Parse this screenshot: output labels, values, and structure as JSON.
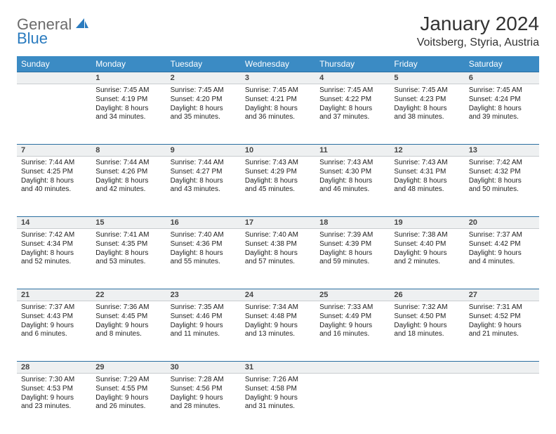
{
  "logo": {
    "text1": "General",
    "text2": "Blue"
  },
  "title": "January 2024",
  "location": "Voitsberg, Styria, Austria",
  "colors": {
    "header_bg": "#3b8bc4",
    "header_text": "#ffffff",
    "day_bg": "#eef0f1",
    "border_top": "#2a6ea0",
    "logo_gray": "#6b6b6b",
    "logo_blue": "#2a7bbf"
  },
  "weekdays": [
    "Sunday",
    "Monday",
    "Tuesday",
    "Wednesday",
    "Thursday",
    "Friday",
    "Saturday"
  ],
  "weeks": [
    {
      "nums": [
        "",
        "1",
        "2",
        "3",
        "4",
        "5",
        "6"
      ],
      "cells": [
        null,
        {
          "sr": "Sunrise: 7:45 AM",
          "ss": "Sunset: 4:19 PM",
          "d1": "Daylight: 8 hours",
          "d2": "and 34 minutes."
        },
        {
          "sr": "Sunrise: 7:45 AM",
          "ss": "Sunset: 4:20 PM",
          "d1": "Daylight: 8 hours",
          "d2": "and 35 minutes."
        },
        {
          "sr": "Sunrise: 7:45 AM",
          "ss": "Sunset: 4:21 PM",
          "d1": "Daylight: 8 hours",
          "d2": "and 36 minutes."
        },
        {
          "sr": "Sunrise: 7:45 AM",
          "ss": "Sunset: 4:22 PM",
          "d1": "Daylight: 8 hours",
          "d2": "and 37 minutes."
        },
        {
          "sr": "Sunrise: 7:45 AM",
          "ss": "Sunset: 4:23 PM",
          "d1": "Daylight: 8 hours",
          "d2": "and 38 minutes."
        },
        {
          "sr": "Sunrise: 7:45 AM",
          "ss": "Sunset: 4:24 PM",
          "d1": "Daylight: 8 hours",
          "d2": "and 39 minutes."
        }
      ]
    },
    {
      "nums": [
        "7",
        "8",
        "9",
        "10",
        "11",
        "12",
        "13"
      ],
      "cells": [
        {
          "sr": "Sunrise: 7:44 AM",
          "ss": "Sunset: 4:25 PM",
          "d1": "Daylight: 8 hours",
          "d2": "and 40 minutes."
        },
        {
          "sr": "Sunrise: 7:44 AM",
          "ss": "Sunset: 4:26 PM",
          "d1": "Daylight: 8 hours",
          "d2": "and 42 minutes."
        },
        {
          "sr": "Sunrise: 7:44 AM",
          "ss": "Sunset: 4:27 PM",
          "d1": "Daylight: 8 hours",
          "d2": "and 43 minutes."
        },
        {
          "sr": "Sunrise: 7:43 AM",
          "ss": "Sunset: 4:29 PM",
          "d1": "Daylight: 8 hours",
          "d2": "and 45 minutes."
        },
        {
          "sr": "Sunrise: 7:43 AM",
          "ss": "Sunset: 4:30 PM",
          "d1": "Daylight: 8 hours",
          "d2": "and 46 minutes."
        },
        {
          "sr": "Sunrise: 7:43 AM",
          "ss": "Sunset: 4:31 PM",
          "d1": "Daylight: 8 hours",
          "d2": "and 48 minutes."
        },
        {
          "sr": "Sunrise: 7:42 AM",
          "ss": "Sunset: 4:32 PM",
          "d1": "Daylight: 8 hours",
          "d2": "and 50 minutes."
        }
      ]
    },
    {
      "nums": [
        "14",
        "15",
        "16",
        "17",
        "18",
        "19",
        "20"
      ],
      "cells": [
        {
          "sr": "Sunrise: 7:42 AM",
          "ss": "Sunset: 4:34 PM",
          "d1": "Daylight: 8 hours",
          "d2": "and 52 minutes."
        },
        {
          "sr": "Sunrise: 7:41 AM",
          "ss": "Sunset: 4:35 PM",
          "d1": "Daylight: 8 hours",
          "d2": "and 53 minutes."
        },
        {
          "sr": "Sunrise: 7:40 AM",
          "ss": "Sunset: 4:36 PM",
          "d1": "Daylight: 8 hours",
          "d2": "and 55 minutes."
        },
        {
          "sr": "Sunrise: 7:40 AM",
          "ss": "Sunset: 4:38 PM",
          "d1": "Daylight: 8 hours",
          "d2": "and 57 minutes."
        },
        {
          "sr": "Sunrise: 7:39 AM",
          "ss": "Sunset: 4:39 PM",
          "d1": "Daylight: 8 hours",
          "d2": "and 59 minutes."
        },
        {
          "sr": "Sunrise: 7:38 AM",
          "ss": "Sunset: 4:40 PM",
          "d1": "Daylight: 9 hours",
          "d2": "and 2 minutes."
        },
        {
          "sr": "Sunrise: 7:37 AM",
          "ss": "Sunset: 4:42 PM",
          "d1": "Daylight: 9 hours",
          "d2": "and 4 minutes."
        }
      ]
    },
    {
      "nums": [
        "21",
        "22",
        "23",
        "24",
        "25",
        "26",
        "27"
      ],
      "cells": [
        {
          "sr": "Sunrise: 7:37 AM",
          "ss": "Sunset: 4:43 PM",
          "d1": "Daylight: 9 hours",
          "d2": "and 6 minutes."
        },
        {
          "sr": "Sunrise: 7:36 AM",
          "ss": "Sunset: 4:45 PM",
          "d1": "Daylight: 9 hours",
          "d2": "and 8 minutes."
        },
        {
          "sr": "Sunrise: 7:35 AM",
          "ss": "Sunset: 4:46 PM",
          "d1": "Daylight: 9 hours",
          "d2": "and 11 minutes."
        },
        {
          "sr": "Sunrise: 7:34 AM",
          "ss": "Sunset: 4:48 PM",
          "d1": "Daylight: 9 hours",
          "d2": "and 13 minutes."
        },
        {
          "sr": "Sunrise: 7:33 AM",
          "ss": "Sunset: 4:49 PM",
          "d1": "Daylight: 9 hours",
          "d2": "and 16 minutes."
        },
        {
          "sr": "Sunrise: 7:32 AM",
          "ss": "Sunset: 4:50 PM",
          "d1": "Daylight: 9 hours",
          "d2": "and 18 minutes."
        },
        {
          "sr": "Sunrise: 7:31 AM",
          "ss": "Sunset: 4:52 PM",
          "d1": "Daylight: 9 hours",
          "d2": "and 21 minutes."
        }
      ]
    },
    {
      "nums": [
        "28",
        "29",
        "30",
        "31",
        "",
        "",
        ""
      ],
      "cells": [
        {
          "sr": "Sunrise: 7:30 AM",
          "ss": "Sunset: 4:53 PM",
          "d1": "Daylight: 9 hours",
          "d2": "and 23 minutes."
        },
        {
          "sr": "Sunrise: 7:29 AM",
          "ss": "Sunset: 4:55 PM",
          "d1": "Daylight: 9 hours",
          "d2": "and 26 minutes."
        },
        {
          "sr": "Sunrise: 7:28 AM",
          "ss": "Sunset: 4:56 PM",
          "d1": "Daylight: 9 hours",
          "d2": "and 28 minutes."
        },
        {
          "sr": "Sunrise: 7:26 AM",
          "ss": "Sunset: 4:58 PM",
          "d1": "Daylight: 9 hours",
          "d2": "and 31 minutes."
        },
        null,
        null,
        null
      ]
    }
  ]
}
